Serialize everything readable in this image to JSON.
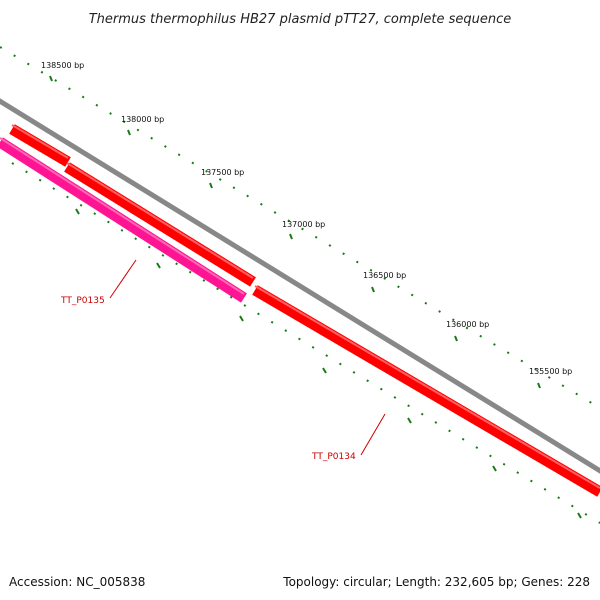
{
  "title": "Thermus thermophilus HB27 plasmid pTT27, complete sequence",
  "footer": {
    "accession": "Accession: NC_005838",
    "summary": "Topology: circular; Length: 232,605 bp; Genes: 228"
  },
  "tick_labels": [
    "138500 bp",
    "138000 bp",
    "137500 bp",
    "137000 bp",
    "136500 bp",
    "136000 bp",
    "135500 bp"
  ],
  "genes": [
    {
      "name": "TT_P0135",
      "color": "#ff1493"
    },
    {
      "name": "TT_P0134",
      "color": "#ff0000"
    }
  ],
  "colors": {
    "backbone": "#888888",
    "tick": "#1a7a1a",
    "forward_gene": "#ff0000",
    "reverse_gene": "#ff1493",
    "label_line": "#cc0000"
  }
}
